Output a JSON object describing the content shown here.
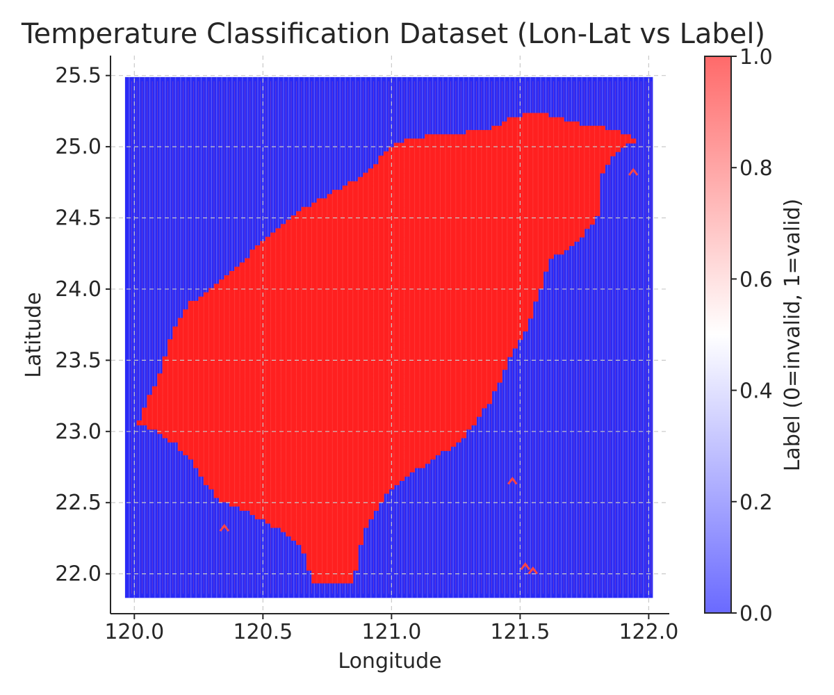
{
  "chart_data": {
    "type": "scatter",
    "title": "Temperature Classification Dataset (Lon-Lat vs Label)",
    "xlabel": "Longitude",
    "ylabel": "Latitude",
    "xlim": [
      119.91,
      122.08
    ],
    "ylim": [
      21.72,
      25.64
    ],
    "xticks": [
      120.0,
      120.5,
      121.0,
      121.5,
      122.0
    ],
    "yticks": [
      22.0,
      22.5,
      23.0,
      23.5,
      24.0,
      24.5,
      25.0,
      25.5
    ],
    "grid": true,
    "grid_x": {
      "start": 119.98,
      "end": 122.0,
      "step": 0.02
    },
    "grid_y": {
      "start": 21.86,
      "end": 25.46,
      "step": 0.03
    },
    "colors": {
      "label_0": "#2a2af5",
      "label_1": "#ff2020",
      "background_stripe": "#7a7af7"
    },
    "label_1_region_outline": [
      [
        120.7,
        21.92
      ],
      [
        120.85,
        21.92
      ],
      [
        120.89,
        22.3
      ],
      [
        120.97,
        22.55
      ],
      [
        121.07,
        22.7
      ],
      [
        121.16,
        22.8
      ],
      [
        121.28,
        22.95
      ],
      [
        121.38,
        23.2
      ],
      [
        121.47,
        23.55
      ],
      [
        121.52,
        23.7
      ],
      [
        121.57,
        23.95
      ],
      [
        121.61,
        24.2
      ],
      [
        121.72,
        24.32
      ],
      [
        121.8,
        24.5
      ],
      [
        121.82,
        24.8
      ],
      [
        121.87,
        24.96
      ],
      [
        121.95,
        25.05
      ],
      [
        121.99,
        25.0
      ],
      [
        121.88,
        25.12
      ],
      [
        121.8,
        25.14
      ],
      [
        121.7,
        25.17
      ],
      [
        121.57,
        25.25
      ],
      [
        121.47,
        25.2
      ],
      [
        121.39,
        25.12
      ],
      [
        121.25,
        25.09
      ],
      [
        121.08,
        25.06
      ],
      [
        121.0,
        25.0
      ],
      [
        120.9,
        24.8
      ],
      [
        120.82,
        24.72
      ],
      [
        120.7,
        24.6
      ],
      [
        120.62,
        24.52
      ],
      [
        120.55,
        24.42
      ],
      [
        120.48,
        24.3
      ],
      [
        120.4,
        24.15
      ],
      [
        120.3,
        24.0
      ],
      [
        120.22,
        23.9
      ],
      [
        120.17,
        23.78
      ],
      [
        120.13,
        23.6
      ],
      [
        120.1,
        23.4
      ],
      [
        120.05,
        23.2
      ],
      [
        120.01,
        23.05
      ],
      [
        120.09,
        23.0
      ],
      [
        120.17,
        22.9
      ],
      [
        120.23,
        22.78
      ],
      [
        120.27,
        22.65
      ],
      [
        120.33,
        22.52
      ],
      [
        120.45,
        22.43
      ],
      [
        120.55,
        22.33
      ],
      [
        120.65,
        22.2
      ]
    ],
    "label_1_isolated_points": [
      [
        120.35,
        22.32
      ],
      [
        121.47,
        22.65
      ],
      [
        121.52,
        22.05
      ],
      [
        121.55,
        22.02
      ],
      [
        121.94,
        24.82
      ]
    ],
    "colorbar": {
      "label": "Label (0=invalid, 1=valid)",
      "ticks": [
        "0.0",
        "0.2",
        "0.4",
        "0.6",
        "0.8",
        "1.0"
      ],
      "range": [
        0,
        1
      ],
      "colormap": "bwr"
    }
  }
}
